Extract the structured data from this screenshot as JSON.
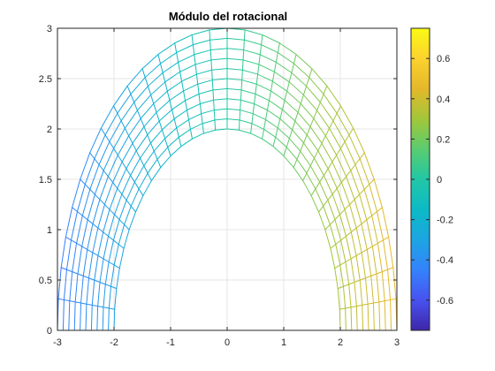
{
  "chart_data": {
    "type": "heatmap",
    "title": "Módulo del rotacional",
    "xlabel": "",
    "ylabel": "",
    "xlim": [
      -3,
      3
    ],
    "ylim": [
      0,
      3
    ],
    "x_ticks": [
      "-3",
      "-2",
      "-1",
      "0",
      "1",
      "2",
      "3"
    ],
    "y_ticks": [
      "0",
      "0.5",
      "1",
      "1.5",
      "2",
      "2.5",
      "3"
    ],
    "grid": true,
    "plot": "mesh surface, viewed from top",
    "domain": {
      "r_inner": 2,
      "r_outer": 3,
      "theta_range_deg": [
        0,
        180
      ]
    },
    "mesh": {
      "radial_lines": 11,
      "angular_lines": 31
    },
    "colorbar": {
      "range": [
        -0.75,
        0.75
      ],
      "ticks": [
        "-0.6",
        "-0.4",
        "-0.2",
        "0",
        "0.2",
        "0.4",
        "0.6"
      ],
      "colormap": "parula"
    }
  }
}
